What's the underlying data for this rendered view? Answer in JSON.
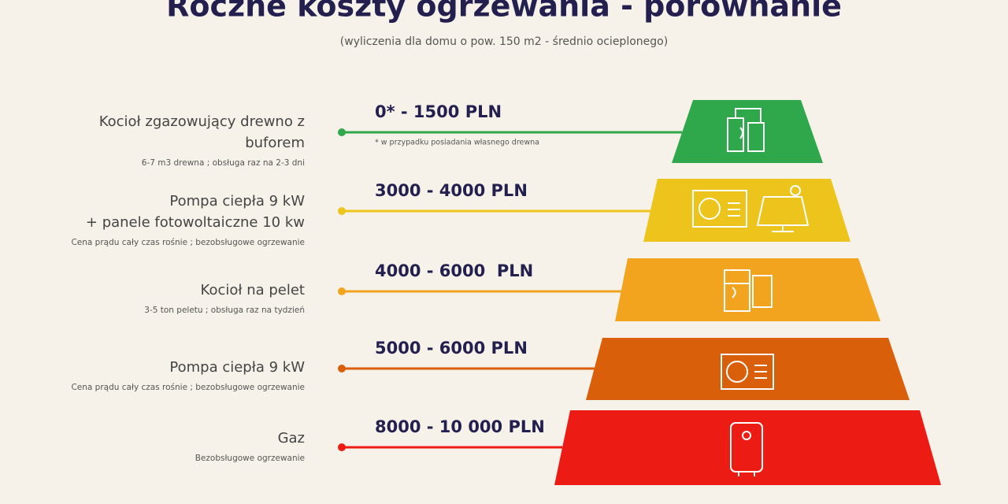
{
  "header": {
    "title": "Roczne koszty ogrzewania - porównanie",
    "subtitle": "(wyliczenia dla domu o pow. 150 m2 - średnio ocieplonego)"
  },
  "items": [
    {
      "label": [
        "Kocioł zgazowujący drewno z",
        "buforem"
      ],
      "note": "6-7 m3 drewna ; obsługa raz na 2-3 dni",
      "cost": "0* - 1500 PLN",
      "footnote": "* w przypadku posiadania własnego drewna",
      "color": "#2fa84b"
    },
    {
      "label": [
        "Pompa ciepła 9 kW",
        "+ panele fotowoltaiczne 10 kw"
      ],
      "note": "Cena prądu cały czas rośnie ; bezobsługowe ogrzewanie",
      "cost": "3000 - 4000 PLN",
      "color": "#ecc41b"
    },
    {
      "label": [
        "Kocioł na pelet"
      ],
      "note": "3-5 ton peletu ; obsługa raz na tydzień",
      "cost": "4000 - 6000  PLN",
      "color": "#f2a41e"
    },
    {
      "label": [
        "Pompa ciepła 9 kW"
      ],
      "note": "Cena prądu cały czas rośnie ; bezobsługowe ogrzewanie",
      "cost": "5000 - 6000 PLN",
      "color": "#d95f0b"
    },
    {
      "label": [
        "Gaz"
      ],
      "note": "Bezobsługowe ogrzewanie",
      "cost": "8000 - 10 000 PLN",
      "color": "#ec1c14"
    }
  ]
}
